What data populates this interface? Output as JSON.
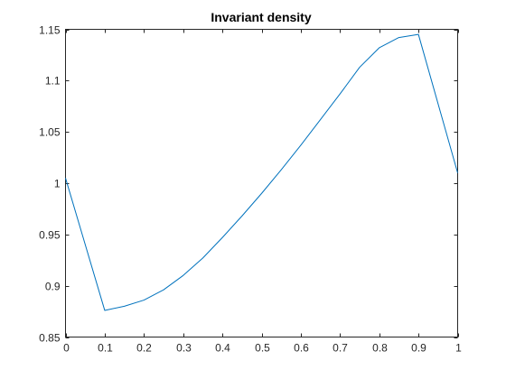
{
  "chart_data": {
    "type": "line",
    "title": "Invariant density",
    "xlabel": "",
    "ylabel": "",
    "xlim": [
      0,
      1
    ],
    "ylim": [
      0.85,
      1.15
    ],
    "xticks": [
      "0",
      "0.1",
      "0.2",
      "0.3",
      "0.4",
      "0.5",
      "0.6",
      "0.7",
      "0.8",
      "0.9",
      "1"
    ],
    "yticks": [
      "0.85",
      "0.9",
      "0.95",
      "1",
      "1.05",
      "1.1",
      "1.15"
    ],
    "grid": false,
    "box": true,
    "series": [
      {
        "color": "#0072BD",
        "x": [
          0,
          0.1,
          0.15,
          0.2,
          0.25,
          0.3,
          0.35,
          0.4,
          0.45,
          0.5,
          0.55,
          0.6,
          0.65,
          0.7,
          0.75,
          0.8,
          0.85,
          0.9,
          1.0
        ],
        "y": [
          1.005,
          0.876,
          0.88,
          0.886,
          0.896,
          0.91,
          0.927,
          0.947,
          0.968,
          0.99,
          1.013,
          1.037,
          1.062,
          1.087,
          1.113,
          1.132,
          1.142,
          1.145,
          1.01
        ]
      }
    ]
  }
}
